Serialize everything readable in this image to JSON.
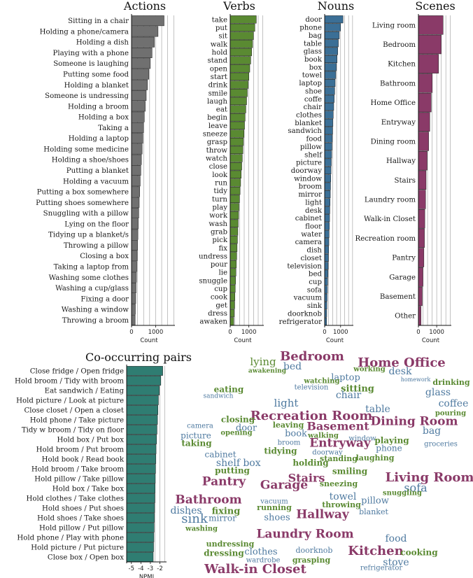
{
  "colors": {
    "actions": "#707070",
    "verbs": "#5a8a32",
    "nouns": "#3b6f96",
    "scenes": "#8a3a68",
    "pairs": "#2f7d72",
    "wc_scene": "#8a3a68",
    "wc_noun": "#4f7aa0",
    "wc_verb": "#5a8a32"
  },
  "chart_data": [
    {
      "type": "bar",
      "orientation": "horizontal",
      "title": "Actions",
      "xlabel": "Count",
      "xticks": [
        "0",
        "1000"
      ],
      "xlim": [
        0,
        1800
      ],
      "categories": [
        "Sitting in a chair",
        "Holding a phone/camera",
        "Holding a dish",
        "Playing with a phone",
        "Someone is laughing",
        "Putting some food",
        "Holding a blanket",
        "Someone is undressing",
        "Holding a broom",
        "Holding a box",
        "Taking a",
        "Holding a laptop",
        "Holding some medicine",
        "Holding a shoe/shoes",
        "Putting a blanket",
        "Holding a vacuum",
        "Putting a box somewhere",
        "Putting shoes somewhere",
        "Snuggling with a pillow",
        "Lying on the floor",
        "Tidying up a blanket/s",
        "Throwing a pillow",
        "Closing a box",
        "Taking a laptop from",
        "Washing some clothes",
        "Washing a cup/glass",
        "Fixing a door",
        "Washing a window",
        "Throwing a broom"
      ],
      "values": [
        1350,
        1100,
        950,
        850,
        780,
        720,
        660,
        610,
        570,
        530,
        500,
        470,
        440,
        410,
        385,
        360,
        340,
        320,
        300,
        280,
        265,
        250,
        235,
        220,
        205,
        190,
        175,
        160,
        150
      ]
    },
    {
      "type": "bar",
      "orientation": "horizontal",
      "title": "Verbs",
      "xlabel": "Count",
      "xticks": [
        "0",
        "1000"
      ],
      "xlim": [
        0,
        1800
      ],
      "categories": [
        "take",
        "put",
        "sit",
        "walk",
        "hold",
        "stand",
        "open",
        "start",
        "drink",
        "smile",
        "laugh",
        "eat",
        "begin",
        "leave",
        "sneeze",
        "grasp",
        "throw",
        "watch",
        "close",
        "look",
        "run",
        "tidy",
        "turn",
        "play",
        "work",
        "wash",
        "grab",
        "pick",
        "fix",
        "undress",
        "pour",
        "lie",
        "snuggle",
        "cup",
        "cook",
        "get",
        "dress",
        "awaken"
      ],
      "values": [
        1400,
        1320,
        1250,
        1200,
        1150,
        1100,
        1050,
        1000,
        960,
        920,
        880,
        840,
        800,
        770,
        740,
        710,
        680,
        650,
        620,
        590,
        560,
        530,
        500,
        470,
        450,
        430,
        410,
        390,
        370,
        350,
        330,
        310,
        290,
        270,
        250,
        230,
        210,
        190
      ]
    },
    {
      "type": "bar",
      "orientation": "horizontal",
      "title": "Nouns",
      "xlabel": "Count",
      "xticks": [
        "0",
        "1000"
      ],
      "xlim": [
        0,
        1800
      ],
      "categories": [
        "door",
        "phone",
        "bag",
        "table",
        "glass",
        "book",
        "box",
        "towel",
        "laptop",
        "shoe",
        "coffe",
        "chair",
        "clothes",
        "blanket",
        "sandwich",
        "food",
        "pillow",
        "shelf",
        "picture",
        "doorway",
        "window",
        "broom",
        "mirror",
        "light",
        "desk",
        "cabinet",
        "floor",
        "water",
        "camera",
        "dish",
        "closet",
        "television",
        "bed",
        "cup",
        "sofa",
        "vacuum",
        "sink",
        "doorknob",
        "refrigerator"
      ],
      "values": [
        1150,
        1000,
        920,
        860,
        820,
        780,
        740,
        700,
        660,
        630,
        600,
        570,
        540,
        520,
        500,
        480,
        460,
        440,
        420,
        400,
        385,
        370,
        355,
        340,
        325,
        310,
        295,
        280,
        265,
        250,
        235,
        220,
        205,
        190,
        175,
        160,
        145,
        130,
        120
      ]
    },
    {
      "type": "bar",
      "orientation": "horizontal",
      "title": "Scenes",
      "xlabel": "Count",
      "xticks": [
        "0",
        "1000"
      ],
      "xlim": [
        0,
        1800
      ],
      "categories": [
        "Living room",
        "Bedroom",
        "Kitchen",
        "Bathroom",
        "Home Office",
        "Entryway",
        "Dining room",
        "Hallway",
        "Stairs",
        "Laundry room",
        "Walk-in Closet",
        "Recreation room",
        "Pantry",
        "Garage",
        "Basement",
        "Other"
      ],
      "values": [
        1350,
        1250,
        1100,
        760,
        700,
        620,
        560,
        480,
        420,
        390,
        350,
        330,
        300,
        250,
        210,
        140
      ]
    },
    {
      "type": "bar",
      "orientation": "horizontal",
      "title": "Co-occurring pairs",
      "xlabel": "NPMI",
      "xticks": [
        "-5",
        "-4",
        "-3",
        "-2"
      ],
      "xlim": [
        -5.5,
        -1.3
      ],
      "categories": [
        "Close fridge / Open fridge",
        "Hold broom / Tidy with broom",
        "Eat  sandwich / Eating",
        "Hold picture / Look at picture",
        "Close closet / Open a closet",
        "Hold phone / Take picture",
        "Tidy w broom / Tidy on floor",
        "Hold box / Put box",
        "Hold broom / Put broom",
        "Hold book / Read book",
        "Hold broom / Take broom",
        "Hold pillow / Take pillow",
        "Hold box / Take box",
        "Hold clothes / Take clothes",
        "Hold shoes / Put shoes",
        "Hold shoes / Take shoes",
        "Hold pillow / Put pillow",
        "Hold phone / Play with phone",
        "Hold picture / Put picture",
        "Close box / Open box"
      ],
      "values": [
        -1.7,
        -1.9,
        -2.05,
        -2.15,
        -2.2,
        -2.25,
        -2.3,
        -2.35,
        -2.4,
        -2.42,
        -2.45,
        -2.48,
        -2.5,
        -2.53,
        -2.56,
        -2.58,
        -2.6,
        -2.63,
        -2.66,
        -2.7
      ]
    }
  ],
  "wordcloud": [
    {
      "text": "lying",
      "cat": "verb"
    },
    {
      "text": "awakening",
      "cat": "verb"
    },
    {
      "text": "Bedroom",
      "cat": "scene"
    },
    {
      "text": "bed",
      "cat": "noun"
    },
    {
      "text": "Home Office",
      "cat": "scene"
    },
    {
      "text": "working",
      "cat": "verb"
    },
    {
      "text": "desk",
      "cat": "noun"
    },
    {
      "text": "homework",
      "cat": "noun"
    },
    {
      "text": "laptop",
      "cat": "noun"
    },
    {
      "text": "watching",
      "cat": "verb"
    },
    {
      "text": "television",
      "cat": "noun"
    },
    {
      "text": "eating",
      "cat": "verb"
    },
    {
      "text": "sandwich",
      "cat": "noun"
    },
    {
      "text": "sitting",
      "cat": "verb"
    },
    {
      "text": "chair",
      "cat": "noun"
    },
    {
      "text": "drinking",
      "cat": "verb"
    },
    {
      "text": "glass",
      "cat": "noun"
    },
    {
      "text": "coffee",
      "cat": "noun"
    },
    {
      "text": "light",
      "cat": "noun"
    },
    {
      "text": "table",
      "cat": "noun"
    },
    {
      "text": "pouring",
      "cat": "verb"
    },
    {
      "text": "Recreation Room",
      "cat": "scene"
    },
    {
      "text": "closing",
      "cat": "verb"
    },
    {
      "text": "Basement",
      "cat": "scene"
    },
    {
      "text": "Dining Room",
      "cat": "scene"
    },
    {
      "text": "camera",
      "cat": "noun"
    },
    {
      "text": "door",
      "cat": "noun"
    },
    {
      "text": "leaving",
      "cat": "verb"
    },
    {
      "text": "bag",
      "cat": "noun"
    },
    {
      "text": "picture",
      "cat": "noun"
    },
    {
      "text": "opening",
      "cat": "verb"
    },
    {
      "text": "book",
      "cat": "noun"
    },
    {
      "text": "walking",
      "cat": "verb"
    },
    {
      "text": "window",
      "cat": "noun"
    },
    {
      "text": "playing",
      "cat": "verb"
    },
    {
      "text": "taking",
      "cat": "verb"
    },
    {
      "text": "Entryway",
      "cat": "scene"
    },
    {
      "text": "broom",
      "cat": "noun"
    },
    {
      "text": "phone",
      "cat": "noun"
    },
    {
      "text": "groceries",
      "cat": "noun"
    },
    {
      "text": "cabinet",
      "cat": "noun"
    },
    {
      "text": "tidying",
      "cat": "verb"
    },
    {
      "text": "doorway",
      "cat": "noun"
    },
    {
      "text": "laughing",
      "cat": "verb"
    },
    {
      "text": "shelf",
      "cat": "noun"
    },
    {
      "text": "box",
      "cat": "noun"
    },
    {
      "text": "holding",
      "cat": "verb"
    },
    {
      "text": "standing",
      "cat": "verb"
    },
    {
      "text": "putting",
      "cat": "verb"
    },
    {
      "text": "smiling",
      "cat": "verb"
    },
    {
      "text": "Pantry",
      "cat": "scene"
    },
    {
      "text": "Stairs",
      "cat": "scene"
    },
    {
      "text": "Living Room",
      "cat": "scene"
    },
    {
      "text": "Garage",
      "cat": "scene"
    },
    {
      "text": "sneezing",
      "cat": "verb"
    },
    {
      "text": "sofa",
      "cat": "noun"
    },
    {
      "text": "snuggling",
      "cat": "verb"
    },
    {
      "text": "Bathroom",
      "cat": "scene"
    },
    {
      "text": "towel",
      "cat": "noun"
    },
    {
      "text": "pillow",
      "cat": "noun"
    },
    {
      "text": "vacuum",
      "cat": "noun"
    },
    {
      "text": "running",
      "cat": "verb"
    },
    {
      "text": "throwing",
      "cat": "verb"
    },
    {
      "text": "dishes",
      "cat": "noun"
    },
    {
      "text": "fixing",
      "cat": "verb"
    },
    {
      "text": "blanket",
      "cat": "noun"
    },
    {
      "text": "sink",
      "cat": "noun"
    },
    {
      "text": "mirror",
      "cat": "noun"
    },
    {
      "text": "shoes",
      "cat": "noun"
    },
    {
      "text": "Hallway",
      "cat": "scene"
    },
    {
      "text": "washing",
      "cat": "verb"
    },
    {
      "text": "Laundry Room",
      "cat": "scene"
    },
    {
      "text": "food",
      "cat": "noun"
    },
    {
      "text": "undressing",
      "cat": "verb"
    },
    {
      "text": "dressing",
      "cat": "verb"
    },
    {
      "text": "clothes",
      "cat": "noun"
    },
    {
      "text": "doorknob",
      "cat": "noun"
    },
    {
      "text": "Kitchen",
      "cat": "scene"
    },
    {
      "text": "cooking",
      "cat": "verb"
    },
    {
      "text": "wardrobe",
      "cat": "noun"
    },
    {
      "text": "grasping",
      "cat": "verb"
    },
    {
      "text": "stove",
      "cat": "noun"
    },
    {
      "text": "Walk-in Closet",
      "cat": "scene"
    },
    {
      "text": "refrigerator",
      "cat": "noun"
    }
  ]
}
